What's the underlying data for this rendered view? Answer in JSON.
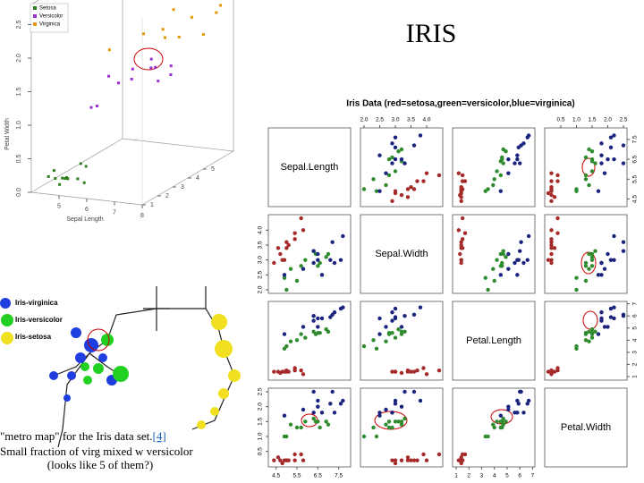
{
  "title": "IRIS",
  "plot3d": {
    "legend": [
      {
        "name": "Setosa",
        "color": "#2e7d1e"
      },
      {
        "name": "Versicolor",
        "color": "#9b30d0"
      },
      {
        "name": "Virginica",
        "color": "#e69500"
      }
    ],
    "x_label": "Sepal Length",
    "z_label": "Petal Width",
    "xticks": [
      5,
      6,
      7,
      8
    ],
    "zticks": [
      {
        "value": 0,
        "label": "0.0"
      },
      {
        "value": 0.5,
        "label": "0.5"
      },
      {
        "value": 1,
        "label": "1.0"
      },
      {
        "value": 1.5,
        "label": "1.5"
      },
      {
        "value": 2,
        "label": "2.0"
      },
      {
        "value": 2.5,
        "label": "2.5"
      }
    ],
    "depth_ticks": [
      1,
      2,
      3,
      4,
      5
    ]
  },
  "matrix": {
    "title": "Iris Data (red=setosa,green=versicolor,blue=virginica)",
    "variables": [
      "Sepal.Length",
      "Sepal.Width",
      "Petal.Length",
      "Petal.Width"
    ],
    "limits": [
      [
        4.3,
        7.9
      ],
      [
        2,
        4.4
      ],
      [
        1,
        6.9
      ],
      [
        0.1,
        2.5
      ]
    ],
    "ticks": [
      [
        4.5,
        5.5,
        6.5,
        7.5
      ],
      [
        {
          "value": 2,
          "label": "2.0"
        },
        2.5,
        {
          "value": 3,
          "label": "3.0"
        },
        3.5,
        {
          "value": 4,
          "label": "4.0"
        }
      ],
      [
        1,
        2,
        3,
        4,
        5,
        6,
        7
      ],
      [
        0.5,
        {
          "value": 1,
          "label": "1.0"
        },
        1.5,
        {
          "value": 2,
          "label": "2.0"
        },
        2.5
      ]
    ],
    "species": [
      {
        "color": "#a52a2a",
        "points": [
          [
            5.1,
            3.5,
            1.4,
            0.2
          ],
          [
            4.9,
            3.0,
            1.4,
            0.2
          ],
          [
            4.7,
            3.2,
            1.3,
            0.2
          ],
          [
            5.0,
            3.6,
            1.4,
            0.2
          ],
          [
            5.4,
            3.9,
            1.7,
            0.4
          ],
          [
            4.6,
            3.4,
            1.4,
            0.3
          ],
          [
            5.0,
            3.4,
            1.5,
            0.2
          ],
          [
            4.4,
            2.9,
            1.4,
            0.2
          ],
          [
            5.4,
            3.7,
            1.5,
            0.2
          ],
          [
            4.8,
            3.0,
            1.4,
            0.1
          ],
          [
            5.8,
            4.0,
            1.2,
            0.2
          ],
          [
            5.7,
            4.4,
            1.5,
            0.4
          ]
        ]
      },
      {
        "color": "#2e8b2e",
        "points": [
          [
            7.0,
            3.2,
            4.7,
            1.4
          ],
          [
            6.4,
            3.2,
            4.5,
            1.5
          ],
          [
            6.9,
            3.1,
            4.9,
            1.5
          ],
          [
            5.5,
            2.3,
            4.0,
            1.3
          ],
          [
            6.5,
            2.8,
            4.6,
            1.5
          ],
          [
            5.7,
            2.8,
            4.5,
            1.3
          ],
          [
            6.3,
            3.3,
            4.7,
            1.6
          ],
          [
            4.9,
            2.4,
            3.3,
            1.0
          ],
          [
            6.6,
            2.9,
            4.6,
            1.3
          ],
          [
            5.2,
            2.7,
            3.9,
            1.4
          ],
          [
            5.0,
            2.0,
            3.5,
            1.0
          ],
          [
            5.9,
            3.0,
            4.2,
            1.5
          ]
        ]
      },
      {
        "color": "#1a237e",
        "points": [
          [
            6.3,
            3.3,
            6.0,
            2.5
          ],
          [
            5.8,
            2.7,
            5.1,
            1.9
          ],
          [
            7.1,
            3.0,
            5.9,
            2.1
          ],
          [
            6.3,
            2.9,
            5.6,
            1.8
          ],
          [
            6.5,
            3.0,
            5.8,
            2.2
          ],
          [
            7.6,
            3.0,
            6.6,
            2.1
          ],
          [
            4.9,
            2.5,
            4.5,
            1.7
          ],
          [
            7.3,
            2.9,
            6.3,
            1.8
          ],
          [
            6.7,
            2.5,
            5.8,
            1.8
          ],
          [
            7.2,
            3.6,
            6.1,
            2.5
          ],
          [
            6.5,
            3.2,
            5.1,
            2.0
          ],
          [
            7.7,
            3.8,
            6.7,
            2.2
          ]
        ]
      }
    ]
  },
  "metro": {
    "legend": [
      "Iris-virginica",
      "Iris-versicolor",
      "Iris-setosa"
    ]
  },
  "caption": {
    "line1": "\"metro map\" for the Iris data set.",
    "ref": "[4]",
    "line2": "Small fraction of virg mixed w versicolor",
    "line3": "(looks like 5 of them?)"
  }
}
